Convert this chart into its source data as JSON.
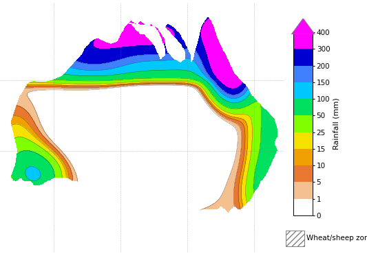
{
  "colorbar_levels": [
    0,
    1,
    5,
    10,
    15,
    25,
    50,
    100,
    150,
    200,
    300,
    400
  ],
  "colorbar_colors": [
    "#ffffff",
    "#f5c090",
    "#e87830",
    "#f0a000",
    "#f5e000",
    "#80ff00",
    "#00e060",
    "#00c8ff",
    "#4080ff",
    "#0000d0",
    "#8800bb",
    "#ff00ff"
  ],
  "colorbar_label": "Rainfall (mm)",
  "colorbar_tick_labels": [
    "0",
    "1",
    "5",
    "10",
    "15",
    "25",
    "50",
    "100",
    "150",
    "200",
    "300",
    "400"
  ],
  "wheat_sheep_label": "Wheat/sheep zone",
  "background_color": "#ffffff",
  "fig_width": 5.33,
  "fig_height": 3.76,
  "dpi": 100,
  "lon_min": 112.0,
  "lon_max": 154.5,
  "lat_min": -44.5,
  "lat_max": -9.0
}
